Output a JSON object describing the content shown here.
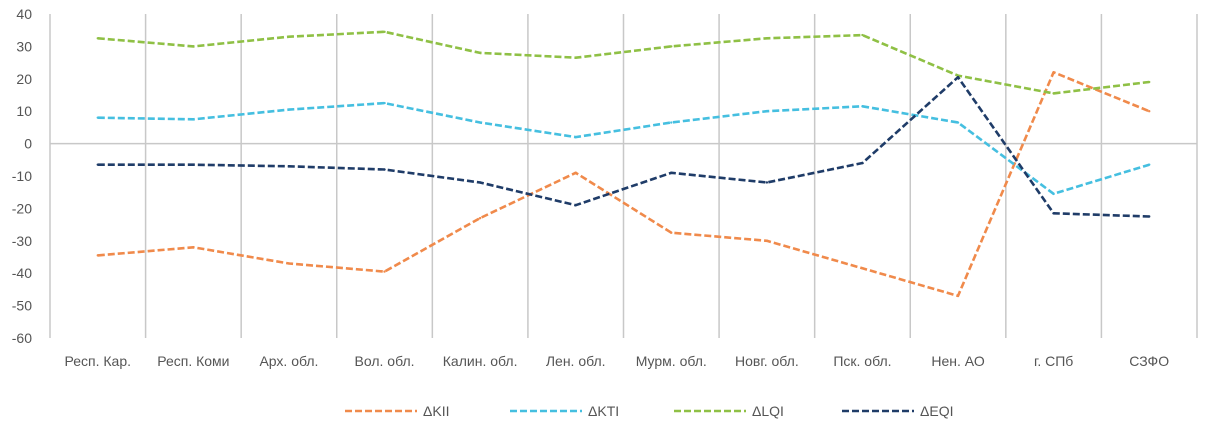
{
  "chart_data": {
    "type": "line",
    "categories": [
      "Респ. Кар.",
      "Респ. Коми",
      "Арх. обл.",
      "Вол. обл.",
      "Калин. обл.",
      "Лен. обл.",
      "Мурм. обл.",
      "Новг. обл.",
      "Пск. обл.",
      "Нен. АО",
      "г. СПб",
      "СЗФО"
    ],
    "ylim": [
      -60,
      40
    ],
    "yticks": [
      "40",
      "30",
      "20",
      "10",
      "0",
      "-10",
      "-20",
      "-30",
      "-40",
      "-50",
      "-60"
    ],
    "grid": "vertical",
    "legend_position": "bottom",
    "series": [
      {
        "name": "ΔKII",
        "color": "#F08A4B",
        "values": [
          -34.5,
          -32,
          -37,
          -39.5,
          -23,
          -9,
          -27.5,
          -30,
          -38.5,
          -47,
          22,
          10
        ]
      },
      {
        "name": "ΔKTI",
        "color": "#45BFE0",
        "values": [
          8,
          7.5,
          10.5,
          12.5,
          6.5,
          2,
          6.5,
          10,
          11.5,
          6.5,
          -15.5,
          -6.5
        ]
      },
      {
        "name": "ΔLQI",
        "color": "#8FC045",
        "values": [
          32.5,
          30,
          33,
          34.5,
          28,
          26.5,
          30,
          32.5,
          33.5,
          21,
          15.5,
          19
        ]
      },
      {
        "name": "ΔEQI",
        "color": "#1F3C68",
        "values": [
          -6.5,
          -6.5,
          -7,
          -8,
          -12,
          -19,
          -9,
          -12,
          -6,
          20.5,
          -21.5,
          -22.5
        ]
      }
    ]
  }
}
